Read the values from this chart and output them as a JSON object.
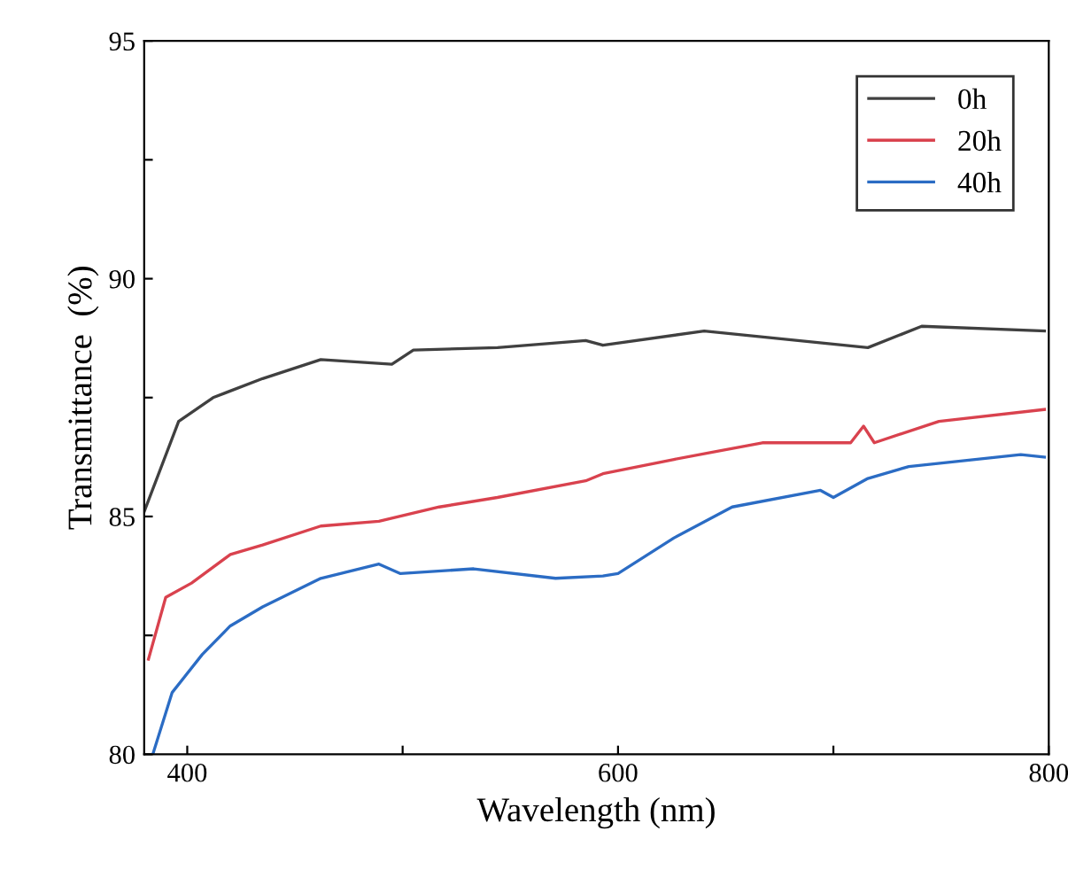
{
  "chart_data": {
    "type": "line",
    "xlabel": "Wavelength (nm)",
    "ylabel": "Transmittance  (%)",
    "xlim": [
      380,
      800
    ],
    "ylim": [
      80,
      95
    ],
    "xticks": [
      400,
      {
        "value": 500,
        "label": null
      },
      600,
      {
        "value": 700,
        "label": null
      },
      800
    ],
    "yticks": [
      80,
      {
        "value": 82.5,
        "label": null
      },
      85,
      {
        "value": 87.5,
        "label": null
      },
      90,
      {
        "value": 92.5,
        "label": null
      },
      95
    ],
    "grid": false,
    "legend": "top right",
    "marker": "none",
    "line_style": "solid",
    "series": [
      {
        "name": "0h",
        "color": "#404040",
        "x": [
          380,
          396,
          412,
          435,
          462,
          495,
          505,
          544,
          585,
          593,
          640,
          716,
          741,
          798
        ],
        "values": [
          85.1,
          87.0,
          87.5,
          87.9,
          88.3,
          88.2,
          88.5,
          88.55,
          88.7,
          88.6,
          88.9,
          88.55,
          89.0,
          88.9
        ]
      },
      {
        "name": "20h",
        "color": "#d9424e",
        "x": [
          382,
          390,
          402,
          420,
          435,
          462,
          489,
          517,
          544,
          585,
          593,
          626,
          667,
          708,
          714,
          719,
          749,
          798
        ],
        "values": [
          82.0,
          83.3,
          83.6,
          84.2,
          84.4,
          84.8,
          84.9,
          85.2,
          85.4,
          85.75,
          85.9,
          86.2,
          86.55,
          86.55,
          86.9,
          86.55,
          87.0,
          87.25
        ]
      },
      {
        "name": "40h",
        "color": "#2b6cc4",
        "x": [
          384,
          393,
          407,
          420,
          435,
          462,
          489,
          499,
          533,
          571,
          593,
          600,
          626,
          653,
          694,
          700,
          716,
          735,
          787,
          798
        ],
        "values": [
          80.0,
          81.3,
          82.1,
          82.7,
          83.1,
          83.7,
          84.0,
          83.8,
          83.9,
          83.7,
          83.75,
          83.8,
          84.55,
          85.2,
          85.55,
          85.4,
          85.8,
          86.05,
          86.3,
          86.25
        ]
      }
    ]
  }
}
